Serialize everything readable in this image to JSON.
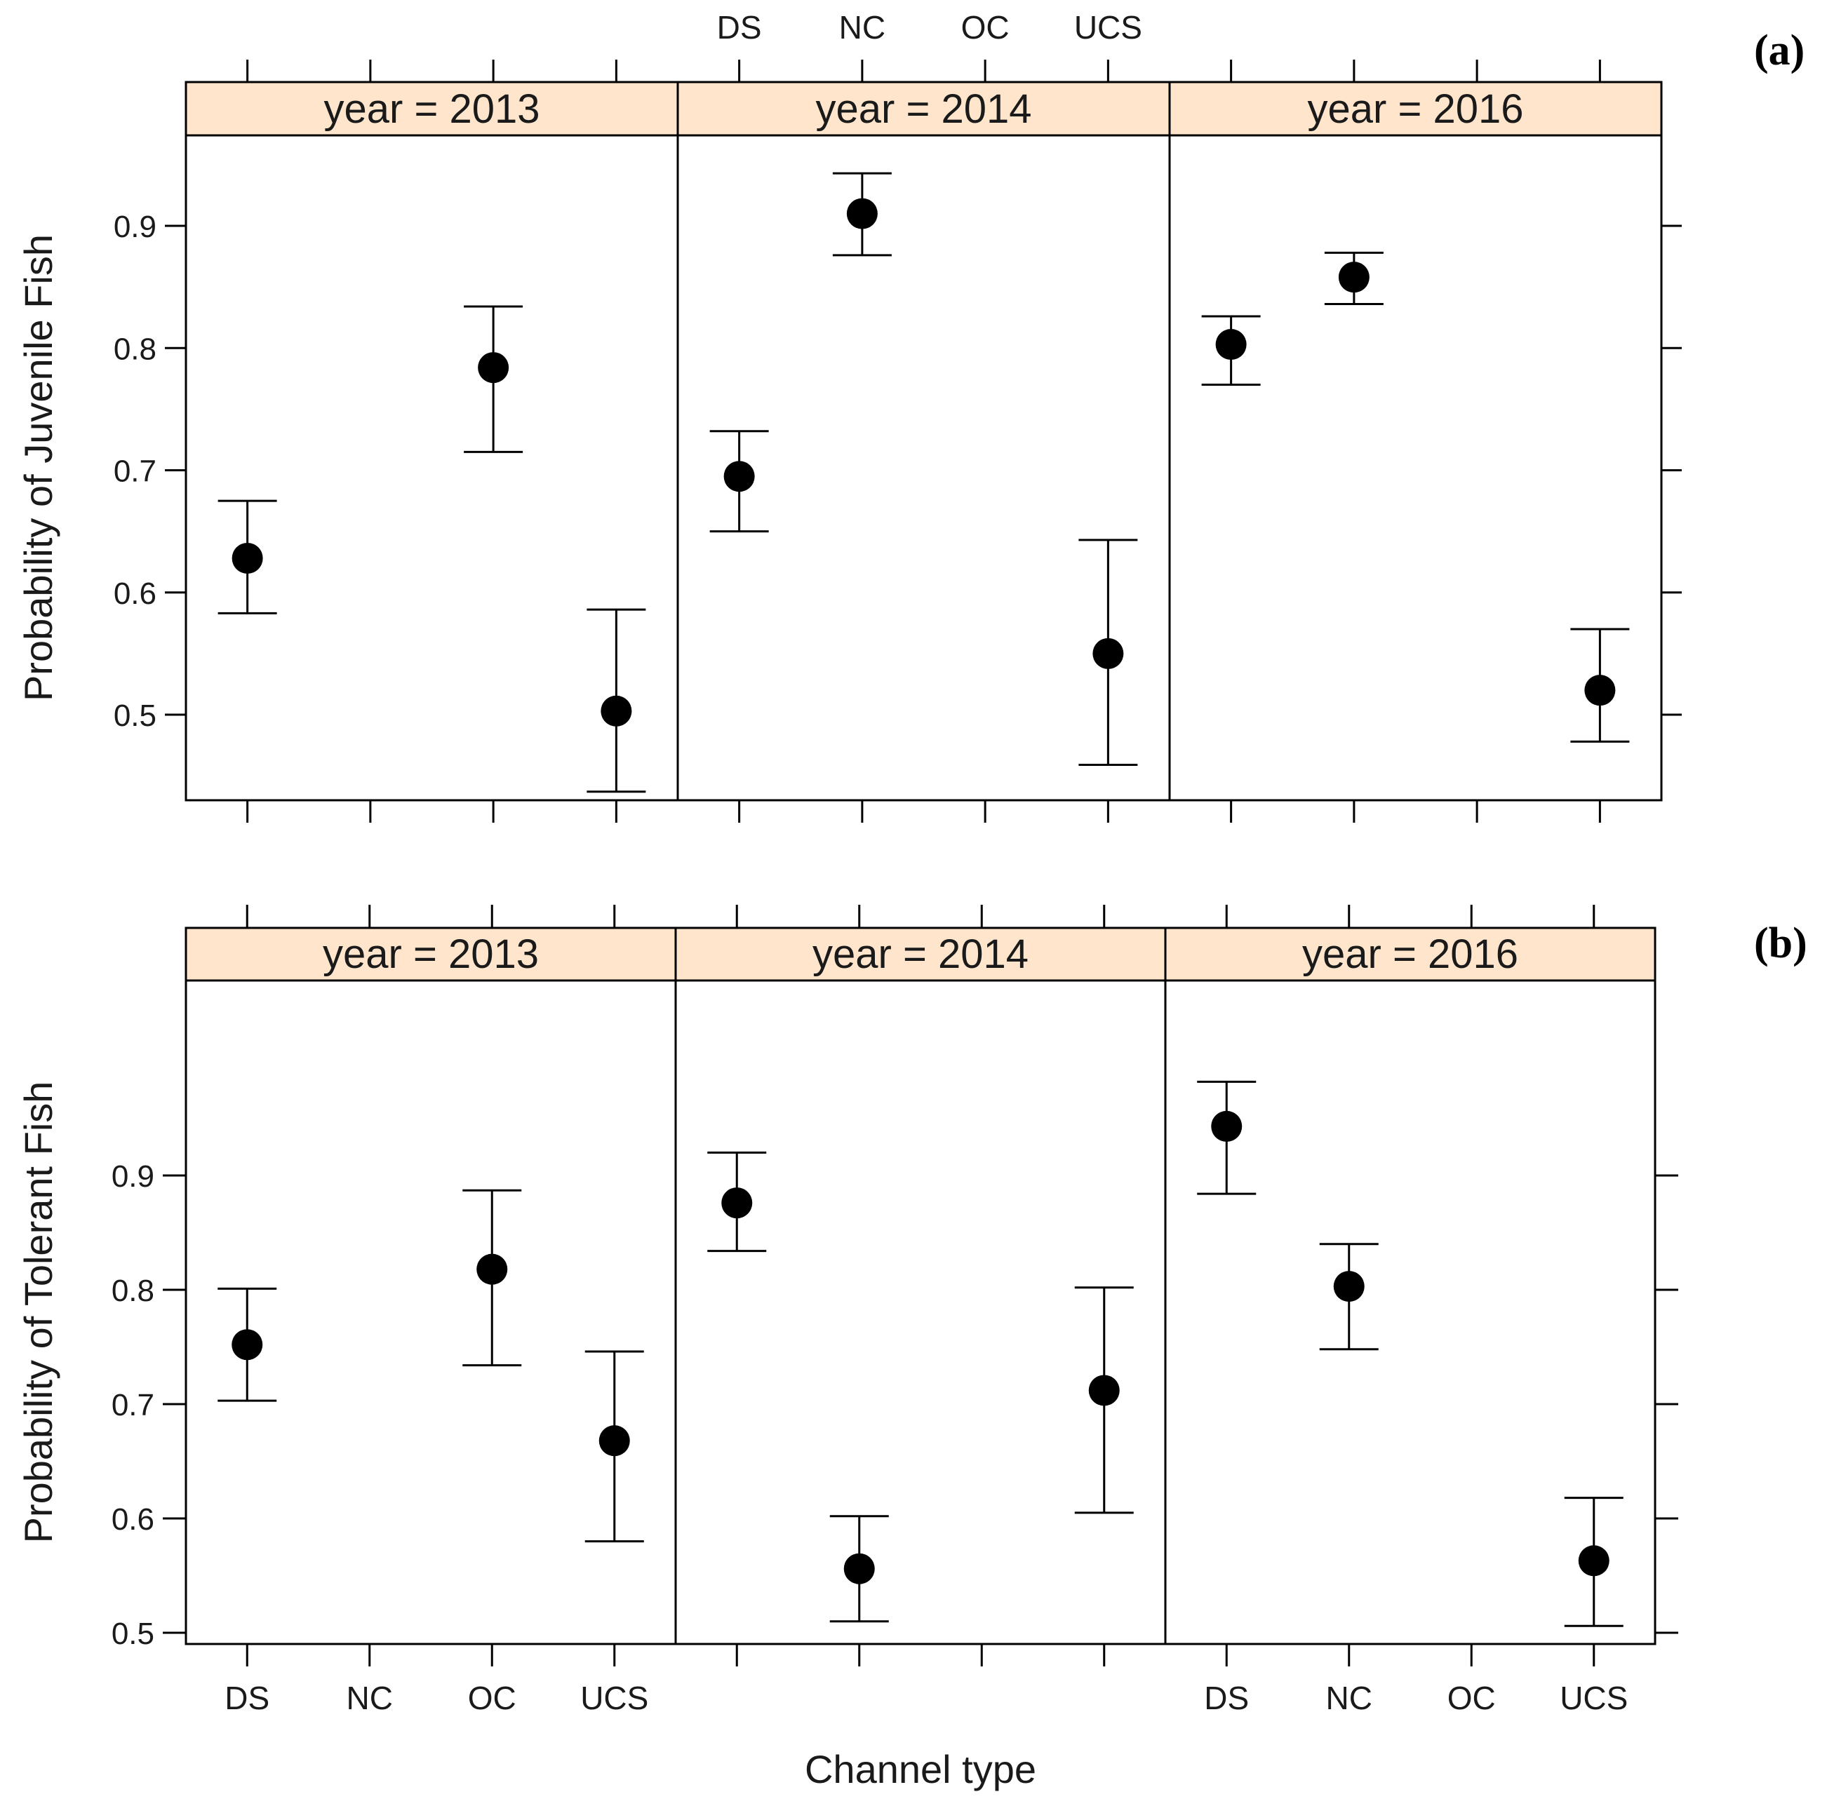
{
  "figure": {
    "panel_a_label": "(a)",
    "panel_b_label": "(b)",
    "x_axis_title": "Channel type",
    "colors": {
      "strip_fill": "#ffe5cc",
      "ink": "#000000",
      "background": "#ffffff"
    }
  },
  "chart_data": [
    {
      "id": "a",
      "type": "scatter",
      "subtype": "point-with-error-bars, faceted by year",
      "ylabel": "Probability of Juvenile Fish",
      "xlabel": "Channel type",
      "categories": [
        "DS",
        "NC",
        "OC",
        "UCS"
      ],
      "y_ticks": [
        0.5,
        0.6,
        0.7,
        0.8,
        0.9
      ],
      "y_tick_labels": [
        "0.5",
        "0.6",
        "0.7",
        "0.8",
        "0.9"
      ],
      "panels": [
        {
          "strip": "year = 2013",
          "points": [
            {
              "category": "DS",
              "estimate": 0.628,
              "lower": 0.583,
              "upper": 0.675
            },
            {
              "category": "OC",
              "estimate": 0.784,
              "lower": 0.715,
              "upper": 0.834
            },
            {
              "category": "UCS",
              "estimate": 0.503,
              "lower": 0.437,
              "upper": 0.586
            }
          ]
        },
        {
          "strip": "year = 2014",
          "points": [
            {
              "category": "DS",
              "estimate": 0.695,
              "lower": 0.65,
              "upper": 0.732
            },
            {
              "category": "NC",
              "estimate": 0.91,
              "lower": 0.876,
              "upper": 0.943
            },
            {
              "category": "UCS",
              "estimate": 0.55,
              "lower": 0.459,
              "upper": 0.643
            }
          ]
        },
        {
          "strip": "year = 2016",
          "points": [
            {
              "category": "DS",
              "estimate": 0.803,
              "lower": 0.77,
              "upper": 0.826
            },
            {
              "category": "NC",
              "estimate": 0.858,
              "lower": 0.836,
              "upper": 0.878
            },
            {
              "category": "UCS",
              "estimate": 0.52,
              "lower": 0.478,
              "upper": 0.57
            }
          ]
        }
      ]
    },
    {
      "id": "b",
      "type": "scatter",
      "subtype": "point-with-error-bars, faceted by year",
      "ylabel": "Probability of Tolerant Fish",
      "xlabel": "Channel type",
      "categories": [
        "DS",
        "NC",
        "OC",
        "UCS"
      ],
      "y_ticks": [
        0.5,
        0.6,
        0.7,
        0.8,
        0.9
      ],
      "y_tick_labels": [
        "0.5",
        "0.6",
        "0.7",
        "0.8",
        "0.9"
      ],
      "panels": [
        {
          "strip": "year = 2013",
          "points": [
            {
              "category": "DS",
              "estimate": 0.752,
              "lower": 0.703,
              "upper": 0.801
            },
            {
              "category": "OC",
              "estimate": 0.818,
              "lower": 0.734,
              "upper": 0.887
            },
            {
              "category": "UCS",
              "estimate": 0.668,
              "lower": 0.58,
              "upper": 0.746
            }
          ]
        },
        {
          "strip": "year = 2014",
          "points": [
            {
              "category": "DS",
              "estimate": 0.876,
              "lower": 0.834,
              "upper": 0.92
            },
            {
              "category": "NC",
              "estimate": 0.556,
              "lower": 0.51,
              "upper": 0.602
            },
            {
              "category": "UCS",
              "estimate": 0.712,
              "lower": 0.605,
              "upper": 0.802
            }
          ]
        },
        {
          "strip": "year = 2016",
          "points": [
            {
              "category": "DS",
              "estimate": 0.943,
              "lower": 0.884,
              "upper": 0.982
            },
            {
              "category": "NC",
              "estimate": 0.803,
              "lower": 0.748,
              "upper": 0.84
            },
            {
              "category": "UCS",
              "estimate": 0.563,
              "lower": 0.506,
              "upper": 0.618
            }
          ]
        }
      ]
    }
  ]
}
